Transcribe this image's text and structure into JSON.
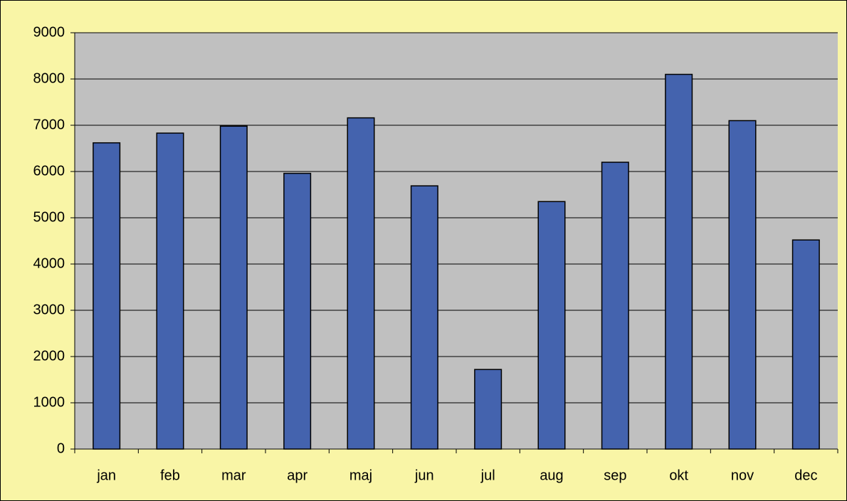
{
  "chart_data": {
    "type": "bar",
    "categories": [
      "jan",
      "feb",
      "mar",
      "apr",
      "maj",
      "jun",
      "jul",
      "aug",
      "sep",
      "okt",
      "nov",
      "dec"
    ],
    "values": [
      6620,
      6830,
      6980,
      5960,
      7160,
      5690,
      1720,
      5350,
      6200,
      8100,
      7100,
      4520
    ],
    "color": "#4463ae",
    "ylim": [
      0,
      9000
    ],
    "yticks": [
      0,
      1000,
      2000,
      3000,
      4000,
      5000,
      6000,
      7000,
      8000,
      9000
    ],
    "grid": true
  }
}
